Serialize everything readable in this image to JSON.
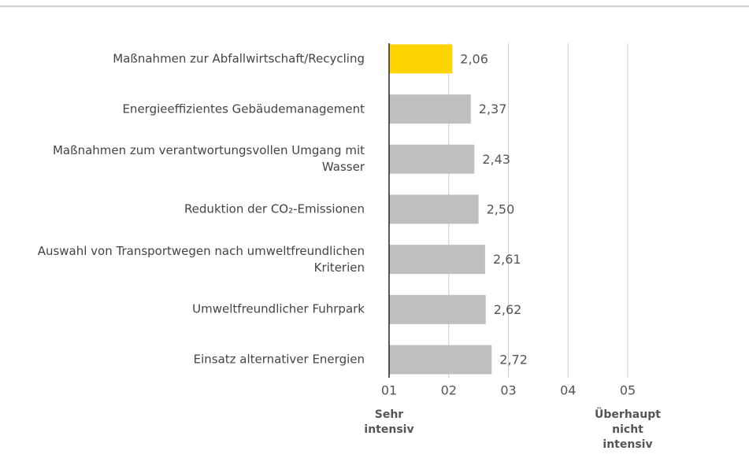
{
  "chart_data": {
    "type": "barh",
    "categories": [
      "Maßnahmen zur Abfallwirtschaft/Recycling",
      "Energieeffizientes Gebäudemanagement",
      "Maßnahmen zum verantwortungsvollen Umgang mit Wasser",
      "Reduktion der CO₂-Emissionen",
      "Auswahl von Transportwegen nach um­weltfreundlichen Kriterien",
      "Umweltfreundlicher Fuhrpark",
      "Einsatz alternativer Energien"
    ],
    "values": [
      2.06,
      2.37,
      2.43,
      2.5,
      2.61,
      2.62,
      2.72
    ],
    "value_labels": [
      "2,06",
      "2,37",
      "2,43",
      "2,50",
      "2,61",
      "2,62",
      "2,72"
    ],
    "colors": [
      "#ffd400",
      "#bfbfbf",
      "#bfbfbf",
      "#bfbfbf",
      "#bfbfbf",
      "#bfbfbf",
      "#bfbfbf"
    ],
    "xlim": [
      1,
      5
    ],
    "xticks": [
      {
        "value": 1,
        "label": "01"
      },
      {
        "value": 2,
        "label": "02"
      },
      {
        "value": 3,
        "label": "03"
      },
      {
        "value": 4,
        "label": "04"
      },
      {
        "value": 5,
        "label": "05"
      }
    ],
    "grid": true,
    "axis_low_label": "Sehr intensiv",
    "axis_high_label": "Überhaupt nicht intensiv"
  }
}
